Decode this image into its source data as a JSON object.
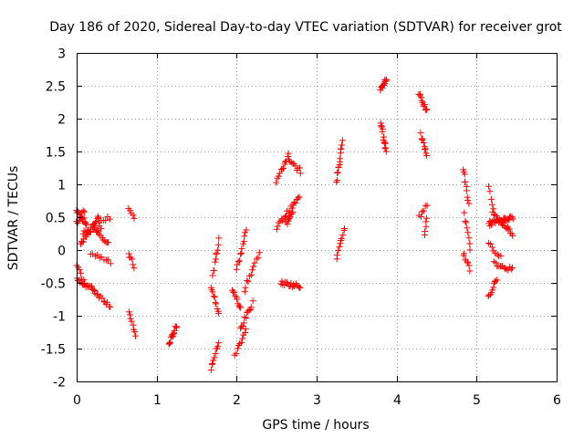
{
  "chart_data": {
    "type": "scatter",
    "title": "Day 186 of 2020, Sidereal Day-to-day VTEC variation (SDTVAR) for receiver grot",
    "xlabel": "GPS time / hours",
    "ylabel": "SDTVAR / TECUs",
    "xlim": [
      0,
      6
    ],
    "ylim": [
      -2,
      3
    ],
    "xticks": [
      "0",
      "1",
      "2",
      "3",
      "4",
      "5",
      "6"
    ],
    "yticks": [
      "-2",
      "-1.5",
      "-1",
      "-0.5",
      "0",
      "0.5",
      "1",
      "1.5",
      "2",
      "2.5",
      "3"
    ],
    "grid": true,
    "marker": "+",
    "color": "#ff0000",
    "segments": [
      {
        "x0": 0.0,
        "x1": 0.12,
        "y0": 0.6,
        "y1": 0.4,
        "n": 16
      },
      {
        "x0": 0.0,
        "x1": 0.1,
        "y0": 0.4,
        "y1": 0.6,
        "n": 8
      },
      {
        "x0": 0.05,
        "x1": 0.28,
        "y0": 0.1,
        "y1": 0.5,
        "n": 22
      },
      {
        "x0": 0.08,
        "x1": 0.3,
        "y0": 0.25,
        "y1": 0.35,
        "n": 14
      },
      {
        "x0": 0.25,
        "x1": 0.4,
        "y0": 0.3,
        "y1": 0.1,
        "n": 10
      },
      {
        "x0": 0.28,
        "x1": 0.42,
        "y0": 0.4,
        "y1": 0.5,
        "n": 6
      },
      {
        "x0": 0.18,
        "x1": 0.42,
        "y0": -0.05,
        "y1": -0.2,
        "n": 10
      },
      {
        "x0": 0.0,
        "x1": 0.1,
        "y0": -0.25,
        "y1": -0.5,
        "n": 7
      },
      {
        "x0": 0.0,
        "x1": 0.22,
        "y0": -0.45,
        "y1": -0.6,
        "n": 16
      },
      {
        "x0": 0.2,
        "x1": 0.42,
        "y0": -0.6,
        "y1": -0.85,
        "n": 14
      },
      {
        "x0": 0.65,
        "x1": 0.72,
        "y0": 0.65,
        "y1": 0.45,
        "n": 5
      },
      {
        "x0": 0.65,
        "x1": 0.72,
        "y0": -0.05,
        "y1": -0.25,
        "n": 6
      },
      {
        "x0": 0.65,
        "x1": 0.74,
        "y0": -0.95,
        "y1": -1.3,
        "n": 8
      },
      {
        "x0": 1.15,
        "x1": 1.25,
        "y0": -1.45,
        "y1": -1.15,
        "n": 14
      },
      {
        "x0": 1.68,
        "x1": 1.78,
        "y0": -0.55,
        "y1": -0.95,
        "n": 10
      },
      {
        "x0": 1.7,
        "x1": 1.78,
        "y0": -0.4,
        "y1": 0.15,
        "n": 10
      },
      {
        "x0": 1.68,
        "x1": 1.78,
        "y0": -1.8,
        "y1": -1.4,
        "n": 10
      },
      {
        "x0": 1.95,
        "x1": 2.05,
        "y0": -0.6,
        "y1": -0.9,
        "n": 10
      },
      {
        "x0": 1.98,
        "x1": 2.12,
        "y0": -1.6,
        "y1": -1.2,
        "n": 10
      },
      {
        "x0": 2.0,
        "x1": 2.12,
        "y0": -0.3,
        "y1": 0.3,
        "n": 12
      },
      {
        "x0": 2.05,
        "x1": 2.2,
        "y0": -1.2,
        "y1": -0.8,
        "n": 12
      },
      {
        "x0": 2.1,
        "x1": 2.28,
        "y0": -0.6,
        "y1": -0.05,
        "n": 12
      },
      {
        "x0": 2.5,
        "x1": 2.78,
        "y0": 0.35,
        "y1": 0.8,
        "n": 20
      },
      {
        "x0": 2.62,
        "x1": 2.7,
        "y0": 0.4,
        "y1": 0.6,
        "n": 10
      },
      {
        "x0": 2.5,
        "x1": 2.65,
        "y0": 1.05,
        "y1": 1.45,
        "n": 12
      },
      {
        "x0": 2.65,
        "x1": 2.8,
        "y0": 1.35,
        "y1": 1.2,
        "n": 10
      },
      {
        "x0": 2.55,
        "x1": 2.8,
        "y0": -0.5,
        "y1": -0.55,
        "n": 18
      },
      {
        "x0": 3.25,
        "x1": 3.32,
        "y0": 1.05,
        "y1": 1.65,
        "n": 14
      },
      {
        "x0": 3.25,
        "x1": 3.35,
        "y0": -0.15,
        "y1": 0.35,
        "n": 10
      },
      {
        "x0": 3.8,
        "x1": 3.87,
        "y0": 2.45,
        "y1": 2.6,
        "n": 12
      },
      {
        "x0": 3.8,
        "x1": 3.87,
        "y0": 1.95,
        "y1": 1.5,
        "n": 14
      },
      {
        "x0": 4.28,
        "x1": 4.38,
        "y0": 2.4,
        "y1": 2.1,
        "n": 12
      },
      {
        "x0": 4.3,
        "x1": 4.38,
        "y0": 1.75,
        "y1": 1.45,
        "n": 10
      },
      {
        "x0": 4.28,
        "x1": 4.38,
        "y0": 0.5,
        "y1": 0.7,
        "n": 6
      },
      {
        "x0": 4.35,
        "x1": 4.38,
        "y0": 0.2,
        "y1": 0.5,
        "n": 5
      },
      {
        "x0": 4.83,
        "x1": 4.9,
        "y0": 1.25,
        "y1": 0.7,
        "n": 10
      },
      {
        "x0": 4.85,
        "x1": 4.92,
        "y0": 0.55,
        "y1": 0.0,
        "n": 8
      },
      {
        "x0": 4.83,
        "x1": 4.92,
        "y0": -0.05,
        "y1": -0.3,
        "n": 8
      },
      {
        "x0": 5.15,
        "x1": 5.25,
        "y0": -0.7,
        "y1": -0.45,
        "n": 10
      },
      {
        "x0": 5.15,
        "x1": 5.45,
        "y0": 0.4,
        "y1": 0.5,
        "n": 30
      },
      {
        "x0": 5.2,
        "x1": 5.45,
        "y0": 0.55,
        "y1": 0.25,
        "n": 20
      },
      {
        "x0": 5.22,
        "x1": 5.45,
        "y0": -0.2,
        "y1": -0.3,
        "n": 14
      },
      {
        "x0": 5.15,
        "x1": 5.22,
        "y0": 0.95,
        "y1": 0.55,
        "n": 6
      },
      {
        "x0": 5.15,
        "x1": 5.3,
        "y0": 0.1,
        "y1": -0.1,
        "n": 8
      }
    ]
  }
}
